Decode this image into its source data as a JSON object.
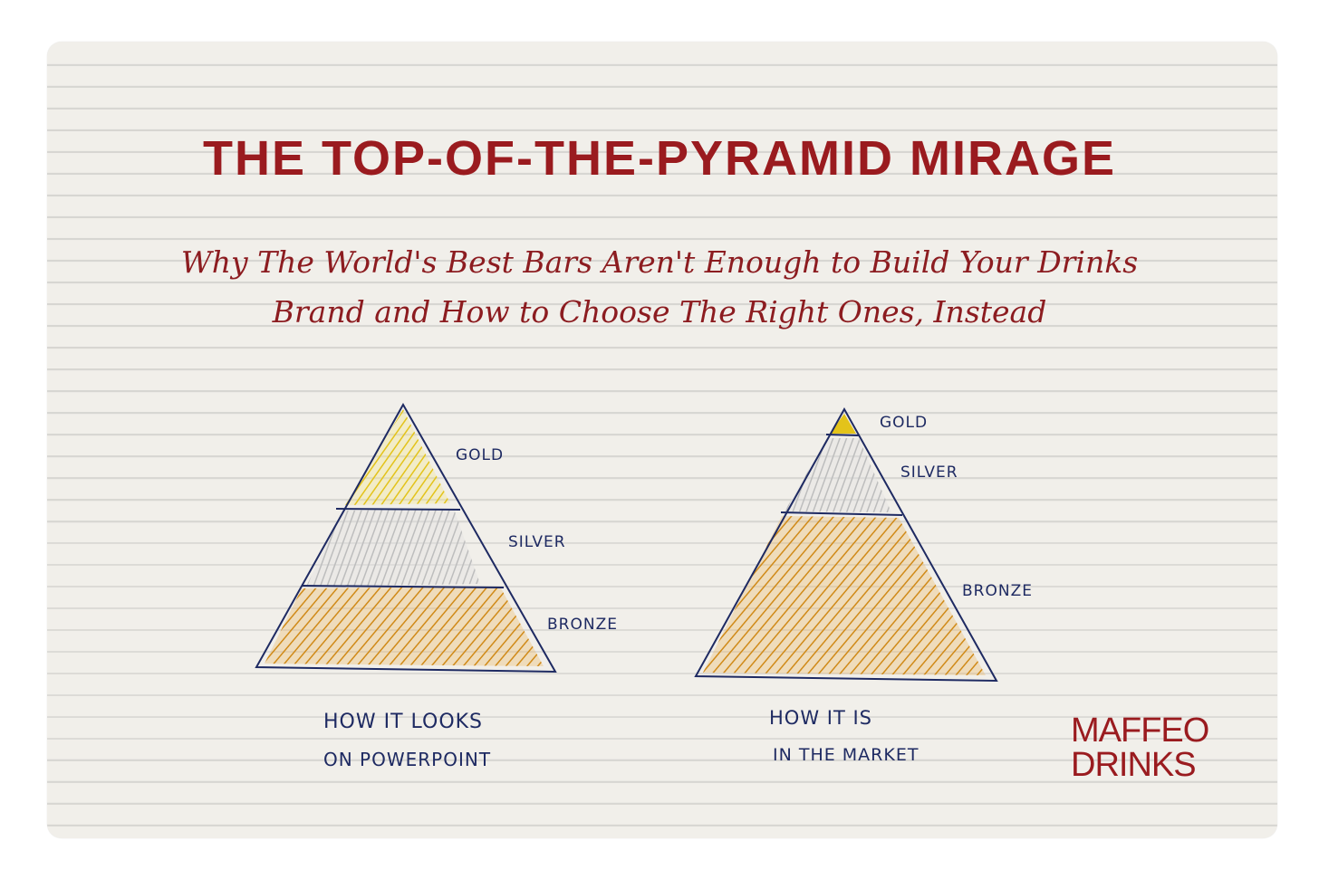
{
  "title": "THE TOP-OF-THE-PYRAMID MIRAGE",
  "subtitle_line1": "Why The World's Best Bars Aren't Enough to Build Your Drinks",
  "subtitle_line2": "Brand and How to Choose The Right Ones, Instead",
  "pyramids": {
    "left": {
      "tiers": [
        "GOLD",
        "SILVER",
        "BRONZE"
      ],
      "caption_line1": "HOW IT LOOKS",
      "caption_line2": "ON POWERPOINT"
    },
    "right": {
      "tiers": [
        "GOLD",
        "SILVER",
        "BRONZE"
      ],
      "caption_line1": "HOW IT IS",
      "caption_line2": "IN THE MARKET"
    }
  },
  "logo": {
    "line1": "MAFFEO",
    "line2": "DRINKS"
  },
  "colors": {
    "title": "#9a1b1f",
    "gold": "#e3c31a",
    "silver": "#bdbdbd",
    "bronze": "#d08a18",
    "ink": "#1e2a62",
    "paper": "#f1efea"
  }
}
